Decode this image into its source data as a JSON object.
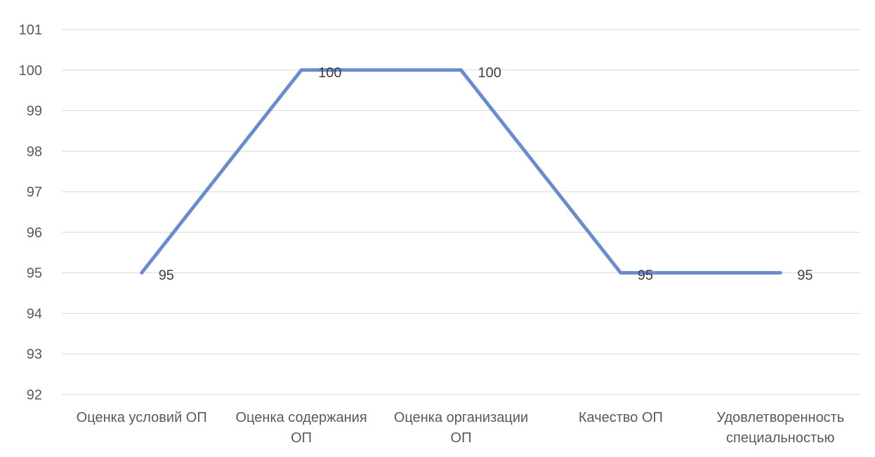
{
  "chart_data": {
    "type": "line",
    "categories": [
      [
        "Оценка условий ОП"
      ],
      [
        "Оценка содержания",
        "ОП"
      ],
      [
        "Оценка организации",
        "ОП"
      ],
      [
        "Качество ОП"
      ],
      [
        "Удовлетворенность",
        "специальностью"
      ]
    ],
    "series": [
      {
        "values": [
          95,
          100,
          100,
          95,
          95
        ]
      }
    ],
    "data_labels": [
      "95",
      "100",
      "100",
      "95",
      "95"
    ],
    "y_ticks": [
      "92",
      "93",
      "94",
      "95",
      "96",
      "97",
      "98",
      "99",
      "100",
      "101"
    ],
    "ylim": [
      92,
      101
    ],
    "grid": true,
    "legend": "none",
    "title": "",
    "xlabel": "",
    "ylabel": "",
    "colors": {
      "series": "#6b8ccc",
      "grid": "#d9d9d9",
      "text": "#595959"
    }
  }
}
